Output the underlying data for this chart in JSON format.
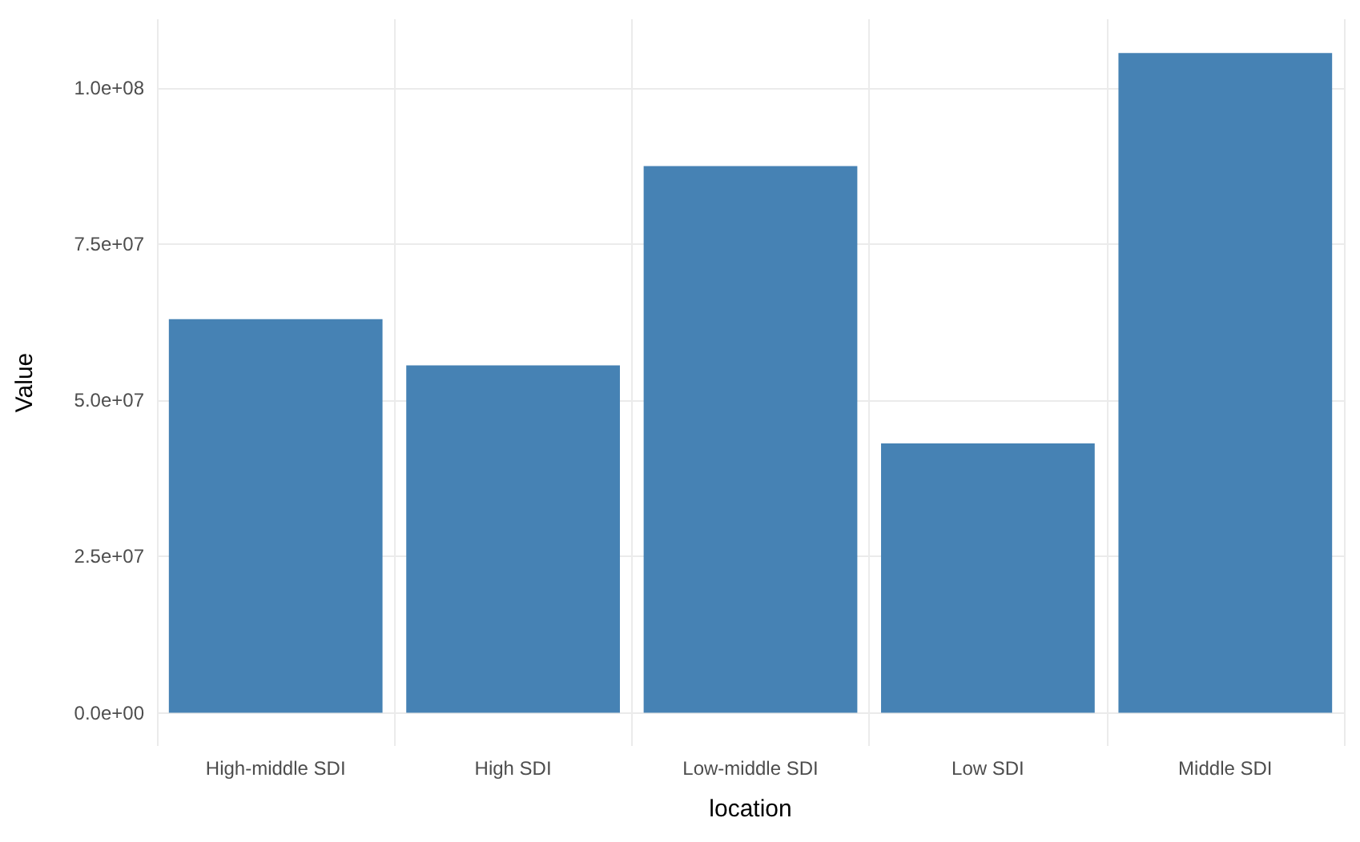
{
  "chart_data": {
    "type": "bar",
    "xlabel": "location",
    "ylabel": "Value",
    "categories": [
      "High-middle SDI",
      "High SDI",
      "Low-middle SDI",
      "Low SDI",
      "Middle SDI"
    ],
    "values": [
      63000000,
      55600000,
      87500000,
      43100000,
      105600000
    ],
    "color": "#4682b4",
    "ylim": [
      -5300000,
      111000000
    ],
    "yticks": [
      {
        "value": 0,
        "label": "0.0e+00"
      },
      {
        "value": 25000000,
        "label": "2.5e+07"
      },
      {
        "value": 50000000,
        "label": "5.0e+07"
      },
      {
        "value": 75000000,
        "label": "7.5e+07"
      },
      {
        "value": 100000000,
        "label": "1.0e+08"
      }
    ],
    "grid": true
  }
}
